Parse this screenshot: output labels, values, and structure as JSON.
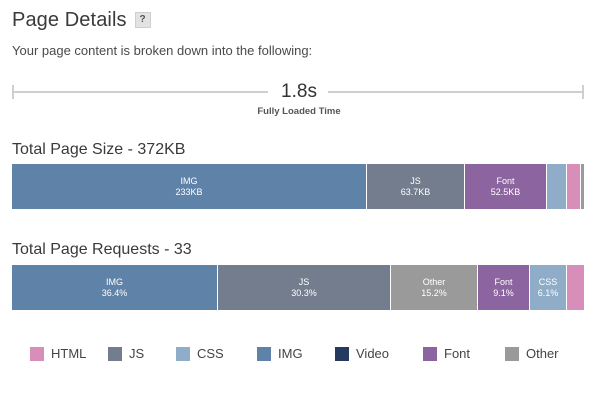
{
  "header": {
    "title": "Page Details",
    "help_label": "?"
  },
  "subtitle": "Your page content is broken down into the following:",
  "load": {
    "value": "1.8s",
    "label": "Fully Loaded Time"
  },
  "size": {
    "title": "Total Page Size - 372KB",
    "segments": [
      {
        "name": "IMG",
        "value": "233KB",
        "color": "#5f82a8"
      },
      {
        "name": "JS",
        "value": "63.7KB",
        "color": "#737d8e"
      },
      {
        "name": "Font",
        "value": "52.5KB",
        "color": "#8c64a0"
      },
      {
        "name": "",
        "value": "",
        "color": "#8fadc9"
      },
      {
        "name": "",
        "value": "",
        "color": "#d78fba"
      },
      {
        "name": "",
        "value": "",
        "color": "#9a9a9a"
      }
    ]
  },
  "requests": {
    "title": "Total Page Requests - 33",
    "segments": [
      {
        "name": "IMG",
        "value": "36.4%",
        "color": "#5f82a8"
      },
      {
        "name": "JS",
        "value": "30.3%",
        "color": "#737d8e"
      },
      {
        "name": "Other",
        "value": "15.2%",
        "color": "#9a9a9a"
      },
      {
        "name": "Font",
        "value": "9.1%",
        "color": "#8c64a0"
      },
      {
        "name": "CSS",
        "value": "6.1%",
        "color": "#8fadc9"
      },
      {
        "name": "",
        "value": "",
        "color": "#d78fba"
      }
    ]
  },
  "legend": [
    {
      "label": "HTML",
      "color": "#d78fba"
    },
    {
      "label": "JS",
      "color": "#737d8e"
    },
    {
      "label": "CSS",
      "color": "#8fadc9"
    },
    {
      "label": "IMG",
      "color": "#5f82a8"
    },
    {
      "label": "Video",
      "color": "#253a5e"
    },
    {
      "label": "Font",
      "color": "#8c64a0"
    },
    {
      "label": "Other",
      "color": "#9a9a9a"
    }
  ]
}
